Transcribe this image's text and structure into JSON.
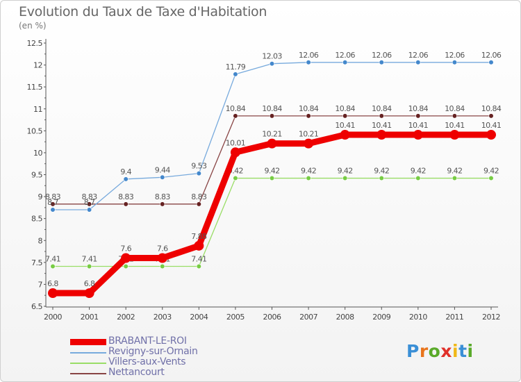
{
  "header": {
    "title": "Evolution du Taux de Taxe d'Habitation",
    "unit": "(en %)"
  },
  "logo": {
    "letters": [
      "P",
      "r",
      "o",
      "x",
      "i",
      "t",
      "i"
    ],
    "colors": [
      "#3a8fd6",
      "#e8741c",
      "#5aaa2a",
      "#e0302a",
      "#f0b818",
      "#3a8fd6",
      "#5aaa2a"
    ]
  },
  "chart_data": {
    "type": "line",
    "title": "Evolution du Taux de Taxe d'Habitation",
    "ylabel": "(en %)",
    "xlabel": "",
    "x": [
      2000,
      2001,
      2002,
      2003,
      2004,
      2005,
      2006,
      2007,
      2008,
      2009,
      2010,
      2011,
      2012
    ],
    "ylim": [
      6.5,
      12.5
    ],
    "yticks": [
      "6.5",
      "7",
      "7.5",
      "8",
      "8.5",
      "9",
      "9.5",
      "10",
      "10.5",
      "11",
      "11.5",
      "12",
      "12.5"
    ],
    "grid": false,
    "legend_position": "bottom",
    "series": [
      {
        "name": "Villers-aux-Vents",
        "color": "#99dd66",
        "marker": "#77cc44",
        "values": [
          7.41,
          7.41,
          7.41,
          7.41,
          7.41,
          9.42,
          9.42,
          9.42,
          9.42,
          9.42,
          9.42,
          9.42,
          9.42
        ],
        "labels": [
          "7.41",
          "7.41",
          "7.41",
          "7.41",
          "7.41",
          "9.42",
          "9.42",
          "9.42",
          "9.42",
          "9.42",
          "9.42",
          "9.42",
          "9.42"
        ]
      },
      {
        "name": "Nettancourt",
        "color": "#884444",
        "marker": "#662222",
        "values": [
          8.83,
          8.83,
          8.83,
          8.83,
          8.83,
          10.84,
          10.84,
          10.84,
          10.84,
          10.84,
          10.84,
          10.84,
          10.84
        ],
        "labels": [
          "8.83",
          "8.83",
          "8.83",
          "8.83",
          "8.83",
          "10.84",
          "10.84",
          "10.84",
          "10.84",
          "10.84",
          "10.84",
          "10.84",
          "10.84"
        ]
      },
      {
        "name": "Revigny-sur-Ornain",
        "color": "#77aadd",
        "marker": "#4488cc",
        "values": [
          8.7,
          8.7,
          9.4,
          9.44,
          9.53,
          11.79,
          12.03,
          12.06,
          12.06,
          12.06,
          12.06,
          12.06,
          12.06
        ],
        "labels": [
          "8.7",
          "8.7",
          "9.4",
          "9.44",
          "9.53",
          "11.79",
          "12.03",
          "12.06",
          "12.06",
          "12.06",
          "12.06",
          "12.06",
          "12.06"
        ]
      },
      {
        "name": "BRABANT-LE-ROI",
        "color": "#ee0000",
        "marker": "#ee0000",
        "values": [
          6.8,
          6.8,
          7.6,
          7.6,
          7.88,
          10.01,
          10.21,
          10.21,
          10.41,
          10.41,
          10.41,
          10.41,
          10.41
        ],
        "labels": [
          "6.8",
          "6.8",
          "7.6",
          "7.6",
          "7.88",
          "10.01",
          "10.21",
          "10.21",
          "10.41",
          "10.41",
          "10.41",
          "10.41",
          "10.41"
        ]
      }
    ]
  }
}
